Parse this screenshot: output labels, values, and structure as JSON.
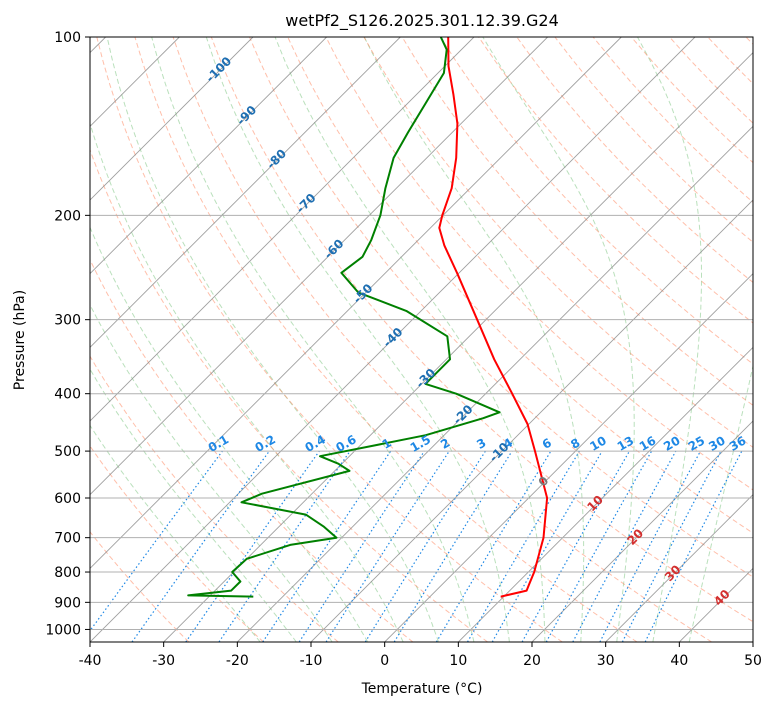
{
  "chart_data": {
    "type": "skew-t",
    "title": "wetPf2_S126.2025.301.12.39.G24",
    "xlabel": "Temperature (°C)",
    "ylabel": "Pressure (hPa)",
    "xlim": [
      -40,
      50
    ],
    "ylim_hpa": [
      1050,
      100
    ],
    "pressure_scale": "log",
    "grid": true,
    "x_ticks": [
      "-40",
      "-30",
      "-20",
      "-10",
      "0",
      "10",
      "20",
      "30",
      "40",
      "50"
    ],
    "y_ticks": [
      "100",
      "200",
      "300",
      "400",
      "500",
      "600",
      "700",
      "800",
      "900",
      "1000"
    ],
    "colors": {
      "temperature": "#ff0000",
      "dewpoint": "#008000",
      "dry_adiabat": "#ff8a65",
      "moist_adiabat": "#66bb6a",
      "mixing_ratio": "#1e88e5",
      "isotherm": "#888888",
      "grid": "#b0b0b0",
      "isotherm_label": "#1f6fb2",
      "mixing_label": "#1e88e5",
      "warm_label": "#d32f2f"
    },
    "series": [
      {
        "role": "temperature",
        "points": [
          {
            "p": 880,
            "t": 9.6
          },
          {
            "p": 860,
            "t": 12.3
          },
          {
            "p": 840,
            "t": 11.8
          },
          {
            "p": 800,
            "t": 10.8
          },
          {
            "p": 700,
            "t": 7.4
          },
          {
            "p": 600,
            "t": 2.5
          },
          {
            "p": 500,
            "t": -5.5
          },
          {
            "p": 450,
            "t": -10.2
          },
          {
            "p": 400,
            "t": -16.4
          },
          {
            "p": 350,
            "t": -23.5
          },
          {
            "p": 300,
            "t": -31.2
          },
          {
            "p": 250,
            "t": -40.3
          },
          {
            "p": 225,
            "t": -45.7
          },
          {
            "p": 210,
            "t": -48.8
          },
          {
            "p": 200,
            "t": -50.1
          },
          {
            "p": 180,
            "t": -52.5
          },
          {
            "p": 160,
            "t": -56.0
          },
          {
            "p": 140,
            "t": -60.5
          },
          {
            "p": 125,
            "t": -65.0
          },
          {
            "p": 112,
            "t": -69.5
          },
          {
            "p": 100,
            "t": -73.5
          }
        ]
      },
      {
        "role": "dewpoint",
        "points": [
          {
            "p": 880,
            "t": -24.0
          },
          {
            "p": 876,
            "t": -33.0
          },
          {
            "p": 860,
            "t": -27.8
          },
          {
            "p": 830,
            "t": -27.8
          },
          {
            "p": 800,
            "t": -30.2
          },
          {
            "p": 760,
            "t": -30.0
          },
          {
            "p": 720,
            "t": -26.0
          },
          {
            "p": 700,
            "t": -20.7
          },
          {
            "p": 670,
            "t": -24.0
          },
          {
            "p": 640,
            "t": -28.0
          },
          {
            "p": 610,
            "t": -38.4
          },
          {
            "p": 590,
            "t": -36.8
          },
          {
            "p": 540,
            "t": -28.0
          },
          {
            "p": 525,
            "t": -30.5
          },
          {
            "p": 510,
            "t": -34.0
          },
          {
            "p": 490,
            "t": -28.3
          },
          {
            "p": 470,
            "t": -22.5
          },
          {
            "p": 440,
            "t": -17.0
          },
          {
            "p": 430,
            "t": -15.6
          },
          {
            "p": 400,
            "t": -24.0
          },
          {
            "p": 385,
            "t": -29.5
          },
          {
            "p": 350,
            "t": -29.5
          },
          {
            "p": 320,
            "t": -33.0
          },
          {
            "p": 290,
            "t": -42.0
          },
          {
            "p": 270,
            "t": -51.0
          },
          {
            "p": 250,
            "t": -56.0
          },
          {
            "p": 235,
            "t": -55.3
          },
          {
            "p": 220,
            "t": -56.4
          },
          {
            "p": 200,
            "t": -58.5
          },
          {
            "p": 180,
            "t": -61.5
          },
          {
            "p": 160,
            "t": -64.5
          },
          {
            "p": 145,
            "t": -66.0
          },
          {
            "p": 130,
            "t": -67.5
          },
          {
            "p": 115,
            "t": -69.2
          },
          {
            "p": 105,
            "t": -72.0
          },
          {
            "p": 100,
            "t": -74.5
          }
        ]
      }
    ],
    "isotherm_labels": [
      "-100",
      "-90",
      "-80",
      "-70",
      "-60",
      "-50",
      "-40",
      "-30",
      "-20",
      "-10",
      "0",
      "10",
      "20",
      "30",
      "40"
    ],
    "mixing_ratio_labels": [
      "0.1",
      "0.2",
      "0.4",
      "0.6",
      "1",
      "1.5",
      "2",
      "3",
      "4",
      "6",
      "8",
      "10",
      "13",
      "16",
      "20",
      "25",
      "30",
      "36"
    ]
  }
}
